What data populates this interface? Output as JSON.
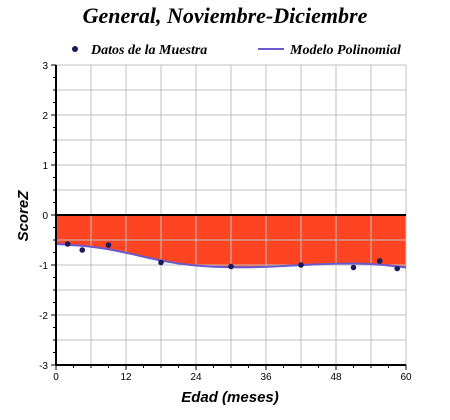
{
  "chart_data": {
    "type": "scatter",
    "title": "General, Noviembre-Diciembre",
    "xlabel": "Edad (meses)",
    "ylabel": "ScoreZ",
    "xlim": [
      0,
      60
    ],
    "ylim": [
      -3,
      3
    ],
    "x_ticks": [
      "0",
      "12",
      "24",
      "36",
      "48",
      "60"
    ],
    "y_ticks": [
      "3",
      "2",
      "1",
      "0",
      "-1",
      "-2",
      "-3"
    ],
    "grid": true,
    "legend_placement": "top",
    "colors": {
      "points": "#1a1a5e",
      "model_line": "#6a5acd",
      "fill": "#ff4422",
      "grid": "#c0c0c0",
      "zero_line": "#000000"
    },
    "series": [
      {
        "name": "Datos de la Muestra",
        "kind": "scatter",
        "points": [
          {
            "x": 2,
            "y": -0.58
          },
          {
            "x": 4.5,
            "y": -0.7
          },
          {
            "x": 9,
            "y": -0.6
          },
          {
            "x": 18,
            "y": -0.95
          },
          {
            "x": 30,
            "y": -1.03
          },
          {
            "x": 42,
            "y": -1.0
          },
          {
            "x": 51,
            "y": -1.05
          },
          {
            "x": 55.5,
            "y": -0.92
          },
          {
            "x": 58.5,
            "y": -1.07
          }
        ]
      },
      {
        "name": "Modelo Polinomial",
        "kind": "line",
        "points": [
          {
            "x": 0,
            "y": -0.58
          },
          {
            "x": 6,
            "y": -0.62
          },
          {
            "x": 12,
            "y": -0.75
          },
          {
            "x": 18,
            "y": -0.92
          },
          {
            "x": 24,
            "y": -1.02
          },
          {
            "x": 30,
            "y": -1.05
          },
          {
            "x": 36,
            "y": -1.04
          },
          {
            "x": 42,
            "y": -1.0
          },
          {
            "x": 48,
            "y": -0.97
          },
          {
            "x": 54,
            "y": -0.97
          },
          {
            "x": 60,
            "y": -1.05
          }
        ]
      }
    ]
  }
}
